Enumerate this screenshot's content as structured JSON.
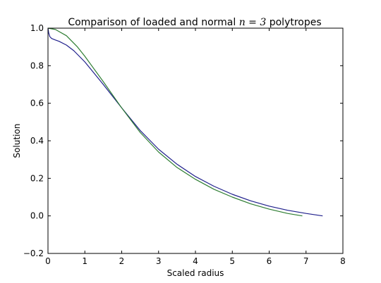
{
  "chart_data": {
    "type": "line",
    "title": {
      "prefix": "Comparison of loaded and normal ",
      "math": "n = 3",
      "suffix": " polytropes"
    },
    "xlabel": "Scaled radius",
    "ylabel": "Solution",
    "xlim": [
      0,
      8
    ],
    "ylim": [
      -0.2,
      1.0
    ],
    "xticks": [
      0,
      1,
      2,
      3,
      4,
      5,
      6,
      7,
      8
    ],
    "xtick_labels": [
      "0",
      "1",
      "2",
      "3",
      "4",
      "5",
      "6",
      "7",
      "8"
    ],
    "yticks": [
      -0.2,
      0.0,
      0.2,
      0.4,
      0.6,
      0.8,
      1.0
    ],
    "ytick_labels": [
      "−0.2",
      "0.0",
      "0.2",
      "0.4",
      "0.6",
      "0.8",
      "1.0"
    ],
    "grid": false,
    "series": [
      {
        "color": "#1f1f8c",
        "x": [
          0.0,
          0.02,
          0.05,
          0.1,
          0.2,
          0.3,
          0.5,
          0.7,
          1.0,
          1.5,
          2.0,
          2.5,
          3.0,
          3.5,
          4.0,
          4.5,
          5.0,
          5.5,
          6.0,
          6.5,
          7.0,
          7.45
        ],
        "y": [
          1.0,
          0.975,
          0.955,
          0.945,
          0.937,
          0.93,
          0.91,
          0.88,
          0.82,
          0.7,
          0.575,
          0.455,
          0.355,
          0.275,
          0.21,
          0.158,
          0.115,
          0.08,
          0.052,
          0.03,
          0.013,
          0.0
        ]
      },
      {
        "color": "#2e7d32",
        "x": [
          0.0,
          0.2,
          0.5,
          0.8,
          1.0,
          1.5,
          2.0,
          2.5,
          3.0,
          3.5,
          4.0,
          4.5,
          5.0,
          5.5,
          6.0,
          6.5,
          6.9
        ],
        "y": [
          1.0,
          0.993,
          0.96,
          0.9,
          0.85,
          0.715,
          0.575,
          0.445,
          0.34,
          0.258,
          0.195,
          0.142,
          0.1,
          0.064,
          0.036,
          0.013,
          0.0
        ]
      }
    ]
  }
}
